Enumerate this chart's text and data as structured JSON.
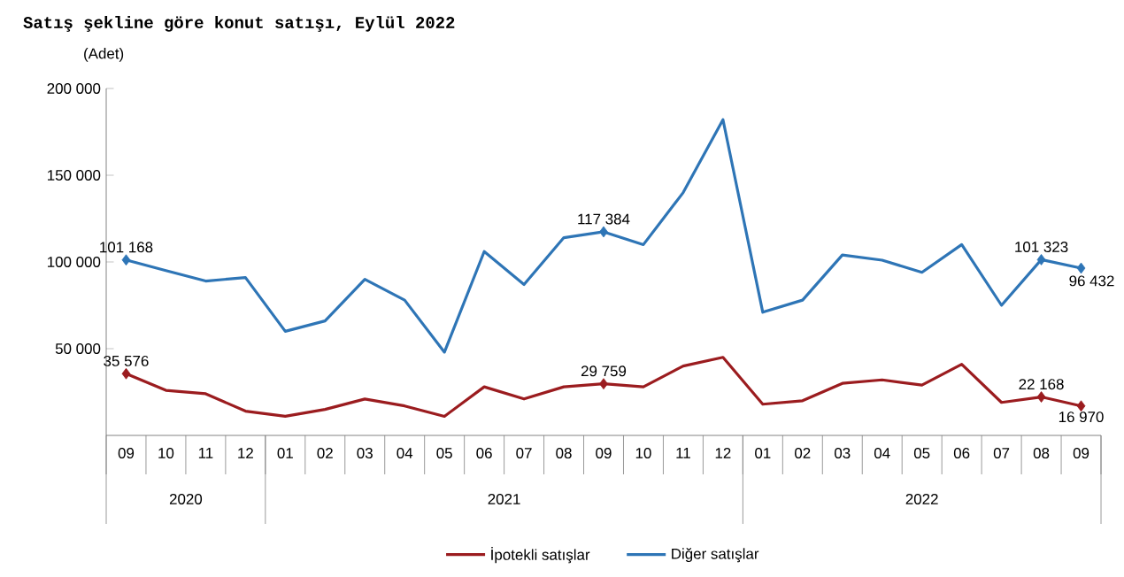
{
  "chart_data": {
    "type": "line",
    "title": "Satış şekline göre konut satışı, Eylül 2022",
    "ylabel": "(Adet)",
    "x": [
      "2020-09",
      "2020-10",
      "2020-11",
      "2020-12",
      "2021-01",
      "2021-02",
      "2021-03",
      "2021-04",
      "2021-05",
      "2021-06",
      "2021-07",
      "2021-08",
      "2021-09",
      "2021-10",
      "2021-11",
      "2021-12",
      "2022-01",
      "2022-02",
      "2022-03",
      "2022-04",
      "2022-05",
      "2022-06",
      "2022-07",
      "2022-08",
      "2022-09"
    ],
    "xlim": [
      "2020-08-16",
      "2022-09-16"
    ],
    "xticks": [
      {
        "value": "2020-09",
        "label": "09"
      },
      {
        "value": "2020-10",
        "label": "10"
      },
      {
        "value": "2020-11",
        "label": "11"
      },
      {
        "value": "2020-12",
        "label": "12"
      },
      {
        "value": "2021-01",
        "label": "01"
      },
      {
        "value": "2021-02",
        "label": "02"
      },
      {
        "value": "2021-03",
        "label": "03"
      },
      {
        "value": "2021-04",
        "label": "04"
      },
      {
        "value": "2021-05",
        "label": "05"
      },
      {
        "value": "2021-06",
        "label": "06"
      },
      {
        "value": "2021-07",
        "label": "07"
      },
      {
        "value": "2021-08",
        "label": "08"
      },
      {
        "value": "2021-09",
        "label": "09"
      },
      {
        "value": "2021-10",
        "label": "10"
      },
      {
        "value": "2021-11",
        "label": "11"
      },
      {
        "value": "2021-12",
        "label": "12"
      },
      {
        "value": "2022-01",
        "label": "01"
      },
      {
        "value": "2022-02",
        "label": "02"
      },
      {
        "value": "2022-03",
        "label": "03"
      },
      {
        "value": "2022-04",
        "label": "04"
      },
      {
        "value": "2022-05",
        "label": "05"
      },
      {
        "value": "2022-06",
        "label": "06"
      },
      {
        "value": "2022-07",
        "label": "07"
      },
      {
        "value": "2022-08",
        "label": "08"
      },
      {
        "value": "2022-09",
        "label": "09"
      }
    ],
    "ylim": [
      0,
      200000
    ],
    "yticks": [
      {
        "value": 50000,
        "label": "50 000"
      },
      {
        "value": 100000,
        "label": "100 000"
      },
      {
        "value": 150000,
        "label": "150 000"
      },
      {
        "value": 200000,
        "label": "200 000"
      }
    ],
    "annotations": [
      "2020",
      "2021",
      "2022"
    ],
    "series": [
      {
        "name": "İpotekli satışlar",
        "color": "#9b1c1f",
        "values": [
          35576,
          26000,
          24000,
          14000,
          11000,
          15000,
          21000,
          17000,
          11000,
          28000,
          21000,
          28000,
          29759,
          28000,
          40000,
          45000,
          18000,
          20000,
          30000,
          32000,
          29000,
          41000,
          19000,
          22168,
          16970
        ],
        "value_labels": [
          "35 576",
          null,
          null,
          null,
          null,
          null,
          null,
          null,
          null,
          null,
          null,
          null,
          "29 759",
          null,
          null,
          null,
          null,
          null,
          null,
          null,
          null,
          null,
          null,
          "22 168",
          "16 970"
        ]
      },
      {
        "name": "Diğer satışlar",
        "color": "#2e75b6",
        "values": [
          101168,
          95000,
          89000,
          91000,
          60000,
          66000,
          90000,
          78000,
          48000,
          106000,
          87000,
          114000,
          117384,
          110000,
          140000,
          182000,
          71000,
          78000,
          104000,
          101000,
          94000,
          110000,
          75000,
          101323,
          96432
        ],
        "value_labels": [
          "101 168",
          null,
          null,
          null,
          null,
          null,
          null,
          null,
          null,
          null,
          null,
          null,
          "117 384",
          null,
          null,
          null,
          null,
          null,
          null,
          null,
          null,
          null,
          null,
          "101 323",
          "96 432"
        ]
      }
    ],
    "legend": "bottom",
    "grid": false
  }
}
